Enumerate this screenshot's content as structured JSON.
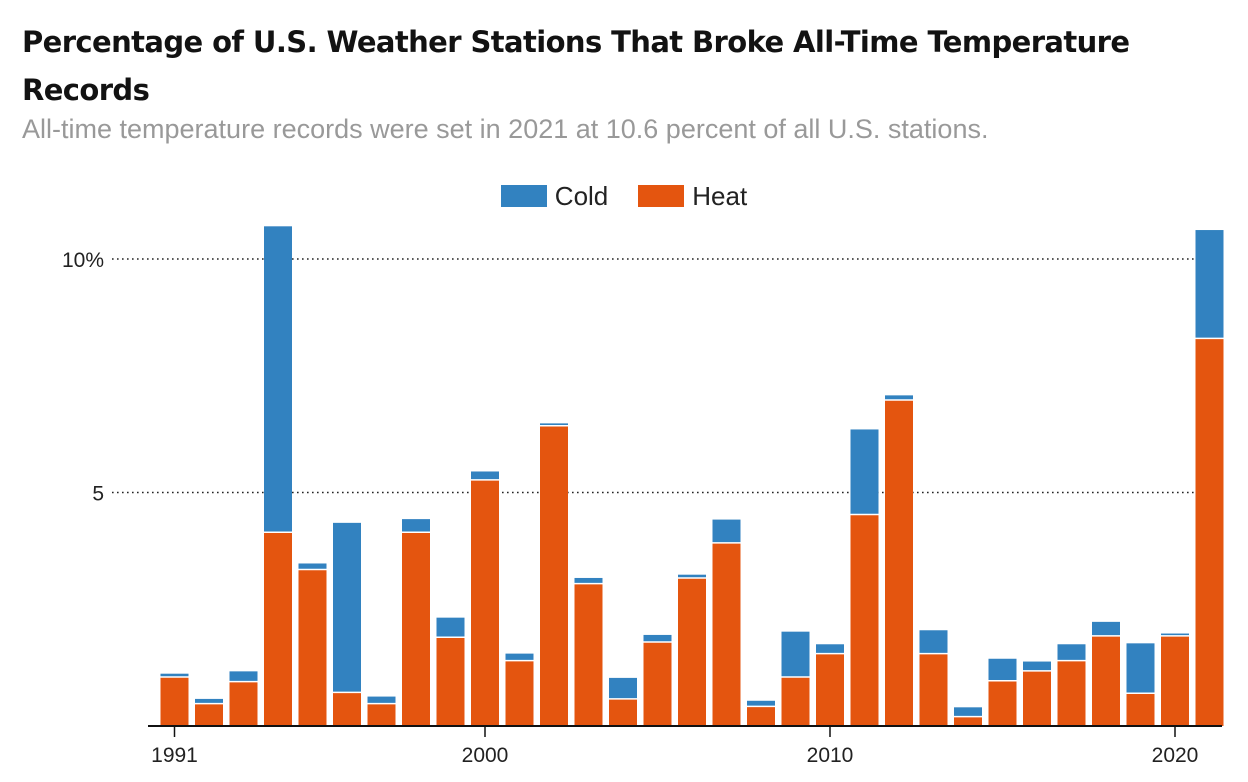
{
  "chart_data": {
    "type": "bar",
    "stacked": true,
    "title": "Percentage of U.S. Weather Stations That Broke All-Time Temperature Records",
    "subtitle": "All-time temperature records were set in 2021 at 10.6 percent of all U.S. stations.",
    "xlabel": "",
    "ylabel": "",
    "ylim": [
      0,
      10.8
    ],
    "y_ticks": [
      {
        "value": 10,
        "label": "10%"
      },
      {
        "value": 5,
        "label": "5"
      }
    ],
    "x_ticks": [
      {
        "value": 1991,
        "label": "1991"
      },
      {
        "value": 2000,
        "label": "2000"
      },
      {
        "value": 2010,
        "label": "2010"
      },
      {
        "value": 2020,
        "label": "2020"
      }
    ],
    "legend": [
      {
        "name": "Cold",
        "color": "#3282c0"
      },
      {
        "name": "Heat",
        "color": "#e4550f"
      }
    ],
    "categories": [
      1991,
      1992,
      1993,
      1994,
      1995,
      1996,
      1997,
      1998,
      1999,
      2000,
      2001,
      2002,
      2003,
      2004,
      2005,
      2006,
      2007,
      2008,
      2009,
      2010,
      2011,
      2012,
      2013,
      2014,
      2015,
      2016,
      2017,
      2018,
      2019,
      2020,
      2021
    ],
    "series": [
      {
        "name": "Heat",
        "color": "#e4550f",
        "values": [
          1.05,
          0.48,
          0.95,
          4.15,
          3.35,
          0.72,
          0.48,
          4.15,
          1.9,
          5.27,
          1.4,
          6.43,
          3.05,
          0.58,
          1.8,
          3.17,
          3.92,
          0.42,
          1.05,
          1.55,
          4.53,
          6.98,
          1.55,
          0.2,
          0.97,
          1.18,
          1.4,
          1.93,
          0.7,
          1.93,
          8.3
        ]
      },
      {
        "name": "Cold",
        "color": "#3282c0",
        "values": [
          0.07,
          0.1,
          0.22,
          6.55,
          0.13,
          3.63,
          0.15,
          0.28,
          0.42,
          0.18,
          0.15,
          0.05,
          0.12,
          0.45,
          0.15,
          0.07,
          0.5,
          0.12,
          0.97,
          0.2,
          1.82,
          0.1,
          0.5,
          0.2,
          0.47,
          0.2,
          0.35,
          0.3,
          1.07,
          0.05,
          2.32
        ]
      }
    ]
  }
}
